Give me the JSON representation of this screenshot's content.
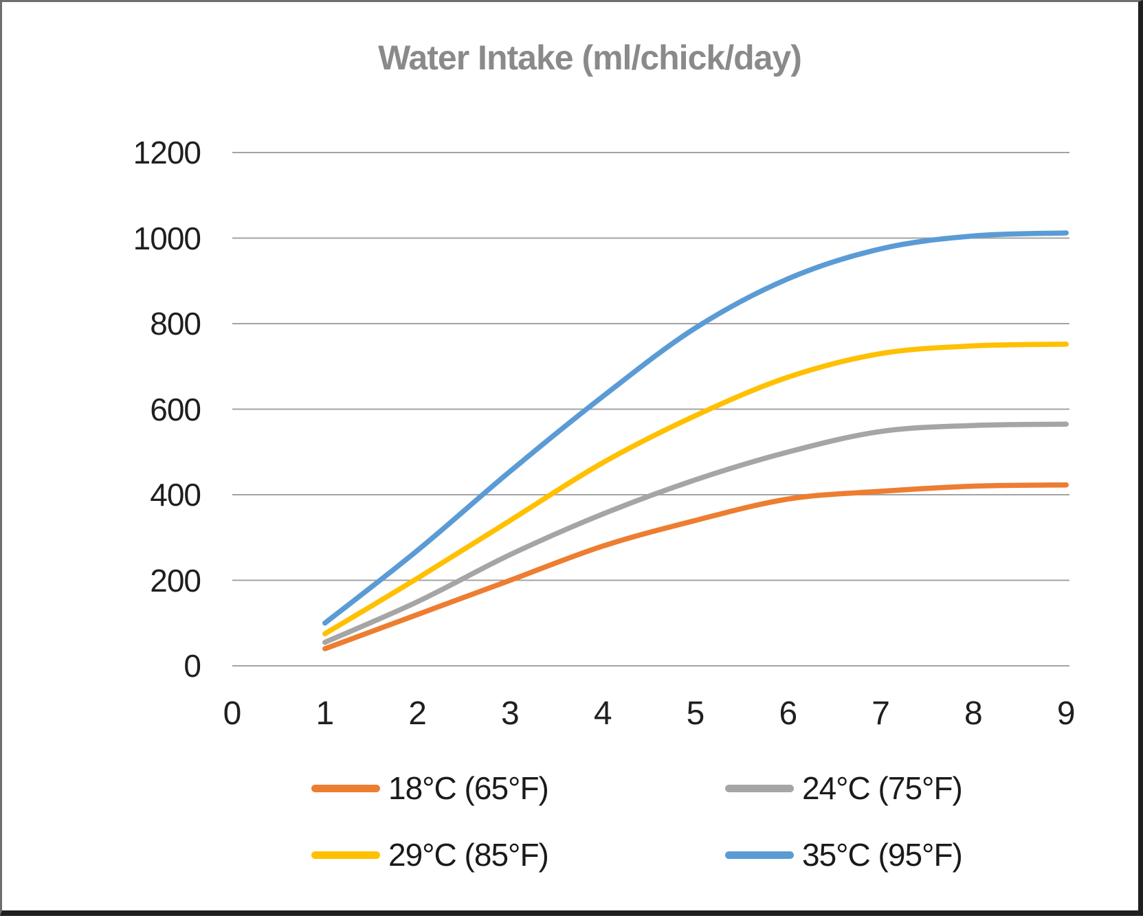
{
  "title": "Water Intake (ml/chick/day)",
  "chart_data": {
    "type": "line",
    "title": "Water Intake (ml/chick/day)",
    "line_style": "smooth",
    "grid": "horizontal",
    "legend_position": "bottom, two columns, two rows",
    "x": [
      1,
      2,
      3,
      4,
      5,
      6,
      7,
      8,
      9
    ],
    "x_ticks": [
      "0",
      "1",
      "2",
      "3",
      "4",
      "5",
      "6",
      "7",
      "8",
      "9"
    ],
    "y_ticks": [
      "0",
      "200",
      "400",
      "600",
      "800",
      "1000",
      "1200"
    ],
    "xlim": [
      0,
      9
    ],
    "ylim": [
      0,
      1200
    ],
    "series": [
      {
        "name": "18°C (65°F)",
        "color": "#ED7D31",
        "values": [
          40,
          120,
          200,
          280,
          340,
          390,
          408,
          420,
          423
        ]
      },
      {
        "name": "24°C (75°F)",
        "color": "#A5A5A5",
        "values": [
          55,
          150,
          260,
          355,
          435,
          500,
          548,
          562,
          565
        ]
      },
      {
        "name": "29°C (85°F)",
        "color": "#FFC000",
        "values": [
          75,
          205,
          340,
          475,
          585,
          675,
          730,
          748,
          752
        ]
      },
      {
        "name": "35°C (95°F)",
        "color": "#5B9BD5",
        "values": [
          100,
          270,
          455,
          630,
          790,
          905,
          975,
          1005,
          1012
        ]
      }
    ]
  },
  "colors": {
    "background": "#FFFFFF",
    "title_text": "#8A8A8A",
    "tick_text": "#1F1F1F",
    "gridline": "#A3A3A3",
    "frame_dark": "#1F1F1F",
    "frame_light": "#6E6E6E"
  }
}
